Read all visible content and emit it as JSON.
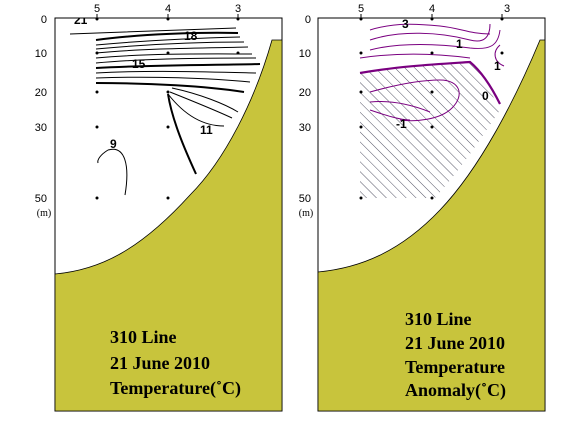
{
  "chart_data": [
    {
      "type": "contour",
      "caption": [
        "310 Line",
        "21 June 2010",
        "Temperature(˚C)"
      ],
      "station_labels": [
        "5",
        "4",
        "3"
      ],
      "depth_ticks": [
        "0",
        "10",
        "20",
        "30",
        "50"
      ],
      "depth_unit": "(m)",
      "contour_labels": [
        "21",
        "18",
        "15",
        "11",
        "9"
      ],
      "colors": {
        "seabed": "#c8c43c",
        "contour": "#000000"
      }
    },
    {
      "type": "contour",
      "caption": [
        "310 Line",
        "21 June 2010",
        "Temperature",
        "Anomaly(˚C)"
      ],
      "station_labels": [
        "5",
        "4",
        "3"
      ],
      "depth_ticks": [
        "0",
        "10",
        "20",
        "30",
        "50"
      ],
      "depth_unit": "(m)",
      "contour_labels": [
        "3",
        "1",
        "1",
        "0",
        "-1"
      ],
      "colors": {
        "seabed": "#c8c43c",
        "contour": "#7a0080",
        "hatch": "#555566"
      }
    }
  ]
}
